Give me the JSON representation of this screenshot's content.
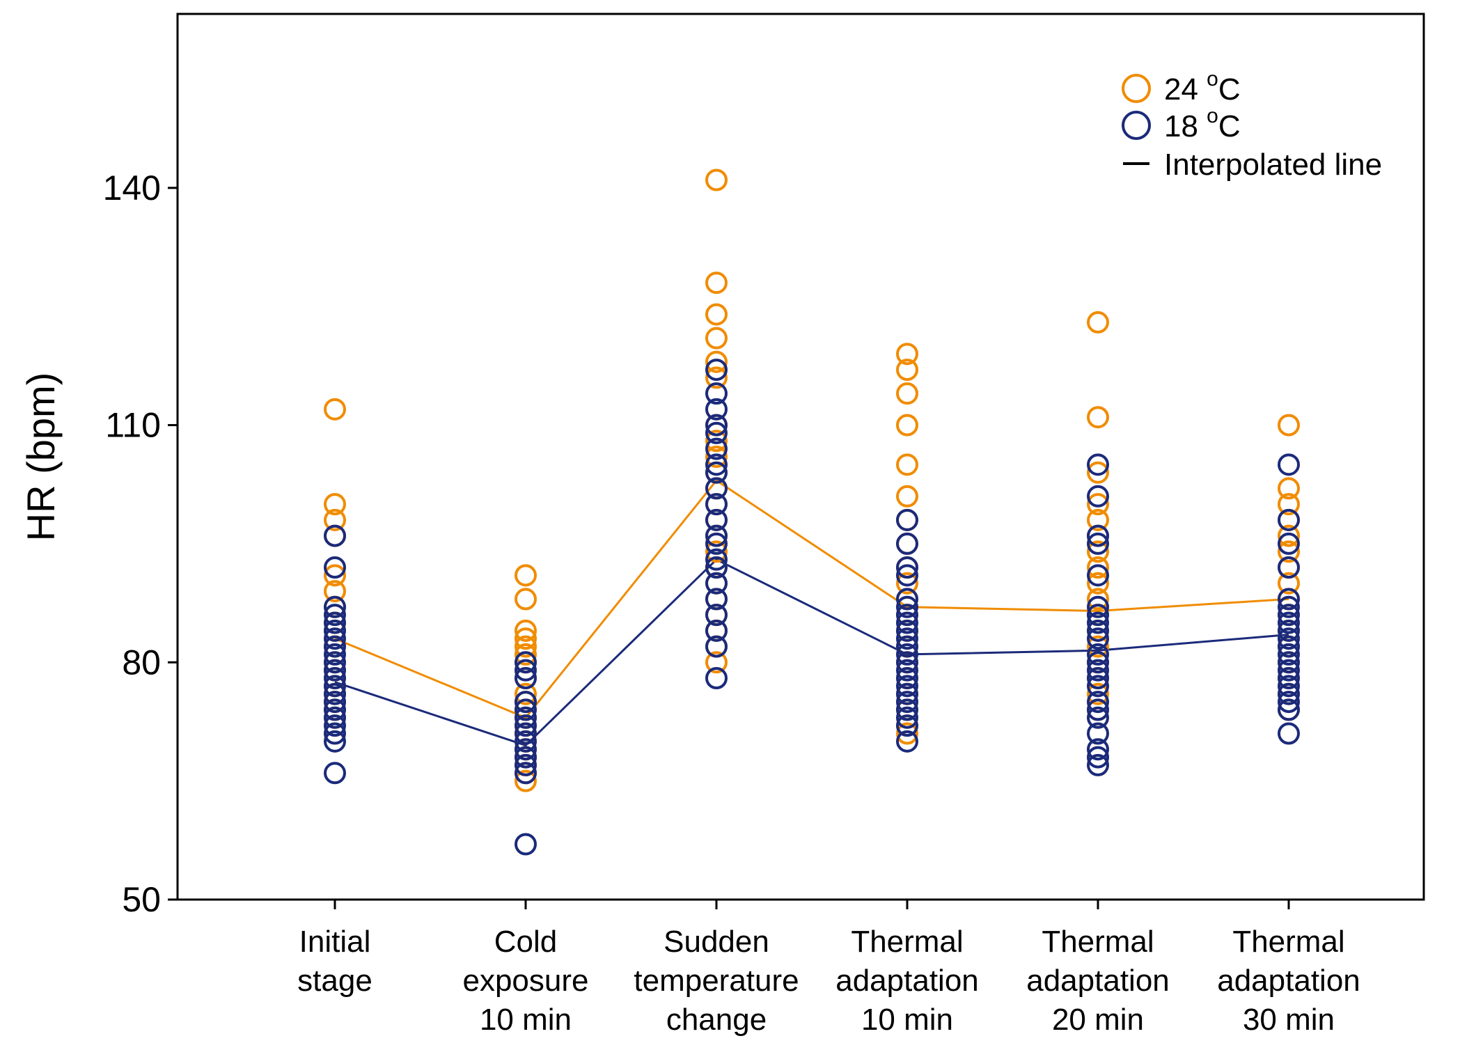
{
  "chart_data": {
    "type": "scatter",
    "title": "",
    "xlabel": "",
    "ylabel": "HR (bpm)",
    "ylim": [
      50,
      140
    ],
    "yticks": [
      50,
      80,
      110,
      140
    ],
    "ylim_display": [
      50,
      162
    ],
    "grid": false,
    "legend_position": "top-right",
    "categories": [
      [
        "Initial",
        "stage"
      ],
      [
        "Cold",
        "exposure",
        "10 min"
      ],
      [
        "Sudden",
        "temperature",
        "change"
      ],
      [
        "Thermal",
        "adaptation",
        "10 min"
      ],
      [
        "Thermal",
        "adaptation",
        "20 min"
      ],
      [
        "Thermal",
        "adaptation",
        "30 min"
      ]
    ],
    "series": [
      {
        "name": "24 °C",
        "label_main": "24 ",
        "label_sup": "o",
        "label_unit": "C",
        "color": "#f08c00",
        "points": [
          [
            112,
            100,
            98,
            96,
            91,
            89,
            87,
            85,
            84,
            82,
            80,
            79,
            78,
            77,
            76,
            75,
            74,
            73
          ],
          [
            91,
            88,
            84,
            83,
            82,
            81,
            80,
            78,
            76,
            75,
            74,
            73,
            72,
            71,
            70,
            69,
            68,
            67,
            66,
            65
          ],
          [
            141,
            128,
            124,
            121,
            118,
            116,
            110,
            108,
            106,
            104,
            102,
            100,
            98,
            96,
            94,
            92,
            90,
            88,
            86,
            84,
            82,
            80
          ],
          [
            119,
            117,
            114,
            110,
            105,
            101,
            98,
            95,
            92,
            90,
            88,
            86,
            84,
            82,
            80,
            78,
            76,
            74,
            72,
            71
          ],
          [
            123,
            111,
            104,
            100,
            98,
            96,
            94,
            92,
            90,
            88,
            86,
            84,
            82,
            80,
            78,
            76,
            74
          ],
          [
            110,
            102,
            100,
            98,
            96,
            94,
            92,
            90,
            88,
            86,
            84,
            82,
            80,
            78,
            76,
            74
          ]
        ],
        "line": [
          83,
          73,
          103,
          87,
          86.5,
          88
        ]
      },
      {
        "name": "18 °C",
        "label_main": "18 ",
        "label_sup": "o",
        "label_unit": "C",
        "color": "#1b2a7a",
        "points": [
          [
            96,
            92,
            87,
            86,
            85,
            84,
            83,
            82,
            81,
            80,
            79,
            78,
            77,
            76,
            75,
            74,
            73,
            72,
            71,
            70,
            66
          ],
          [
            80,
            79,
            78,
            75,
            74,
            73,
            72,
            71,
            70,
            69,
            68,
            67,
            66,
            57
          ],
          [
            117,
            114,
            112,
            110,
            109,
            107,
            105,
            104,
            102,
            100,
            98,
            96,
            95,
            93,
            92,
            90,
            88,
            86,
            84,
            82,
            78
          ],
          [
            98,
            95,
            92,
            91,
            88,
            87,
            86,
            85,
            84,
            83,
            82,
            81,
            80,
            79,
            78,
            77,
            76,
            75,
            74,
            73,
            72,
            70
          ],
          [
            105,
            101,
            96,
            95,
            91,
            87,
            86,
            85,
            84,
            83,
            81,
            80,
            79,
            78,
            77,
            75,
            74,
            73,
            71,
            69,
            68,
            67
          ],
          [
            105,
            98,
            95,
            92,
            88,
            87,
            86,
            85,
            84,
            83,
            82,
            81,
            80,
            79,
            78,
            77,
            76,
            75,
            74,
            71
          ]
        ],
        "line": [
          77.5,
          69.5,
          93,
          81,
          81.5,
          83.5
        ]
      }
    ],
    "legend_line_label": "Interpolated line"
  }
}
